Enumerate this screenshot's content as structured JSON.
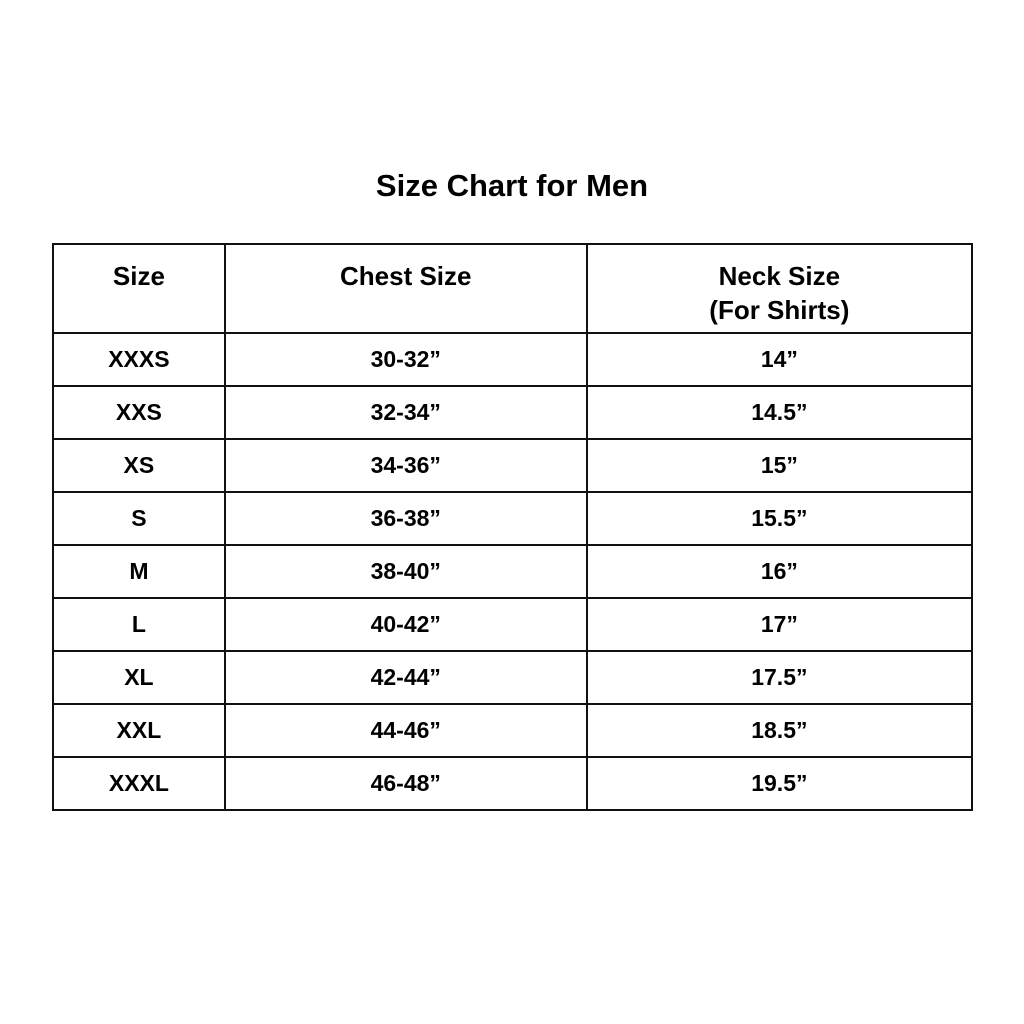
{
  "title": "Size Chart for Men",
  "headers": {
    "size": "Size",
    "chest": "Chest Size",
    "neck": "Neck Size",
    "neck_sub": "(For Shirts)"
  },
  "rows": [
    {
      "size": "XXXS",
      "chest": "30-32”",
      "neck": "14”"
    },
    {
      "size": "XXS",
      "chest": "32-34”",
      "neck": "14.5”"
    },
    {
      "size": "XS",
      "chest": "34-36”",
      "neck": "15”"
    },
    {
      "size": "S",
      "chest": "36-38”",
      "neck": "15.5”"
    },
    {
      "size": "M",
      "chest": "38-40”",
      "neck": "16”"
    },
    {
      "size": "L",
      "chest": "40-42”",
      "neck": "17”"
    },
    {
      "size": "XL",
      "chest": "42-44”",
      "neck": "17.5”"
    },
    {
      "size": "XXL",
      "chest": "44-46”",
      "neck": "18.5”"
    },
    {
      "size": "XXXL",
      "chest": "46-48”",
      "neck": "19.5”"
    }
  ]
}
